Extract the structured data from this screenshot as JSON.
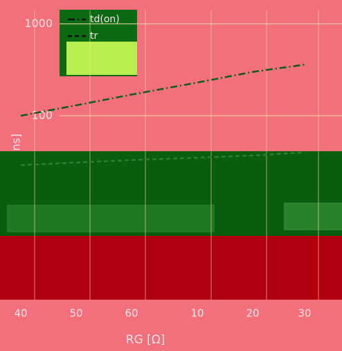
{
  "chart_data": {
    "type": "line",
    "y_label": "ns]",
    "x_label": "RG [Ω]",
    "categories": [
      "40",
      "50",
      "60",
      "10",
      "20",
      "30"
    ],
    "series": [
      {
        "name": "td(on)",
        "color": "#0b5d1a",
        "values": [
          100,
          130,
          170,
          230,
          300,
          360
        ]
      },
      {
        "name": "tr",
        "color": "#2e7d32",
        "values": [
          29,
          31,
          33,
          35,
          37,
          40
        ]
      }
    ],
    "ylim": [
      1,
      1400
    ],
    "yticks": [
      100,
      1000
    ],
    "log_y": true,
    "grid": true,
    "legend": "upper-left"
  }
}
